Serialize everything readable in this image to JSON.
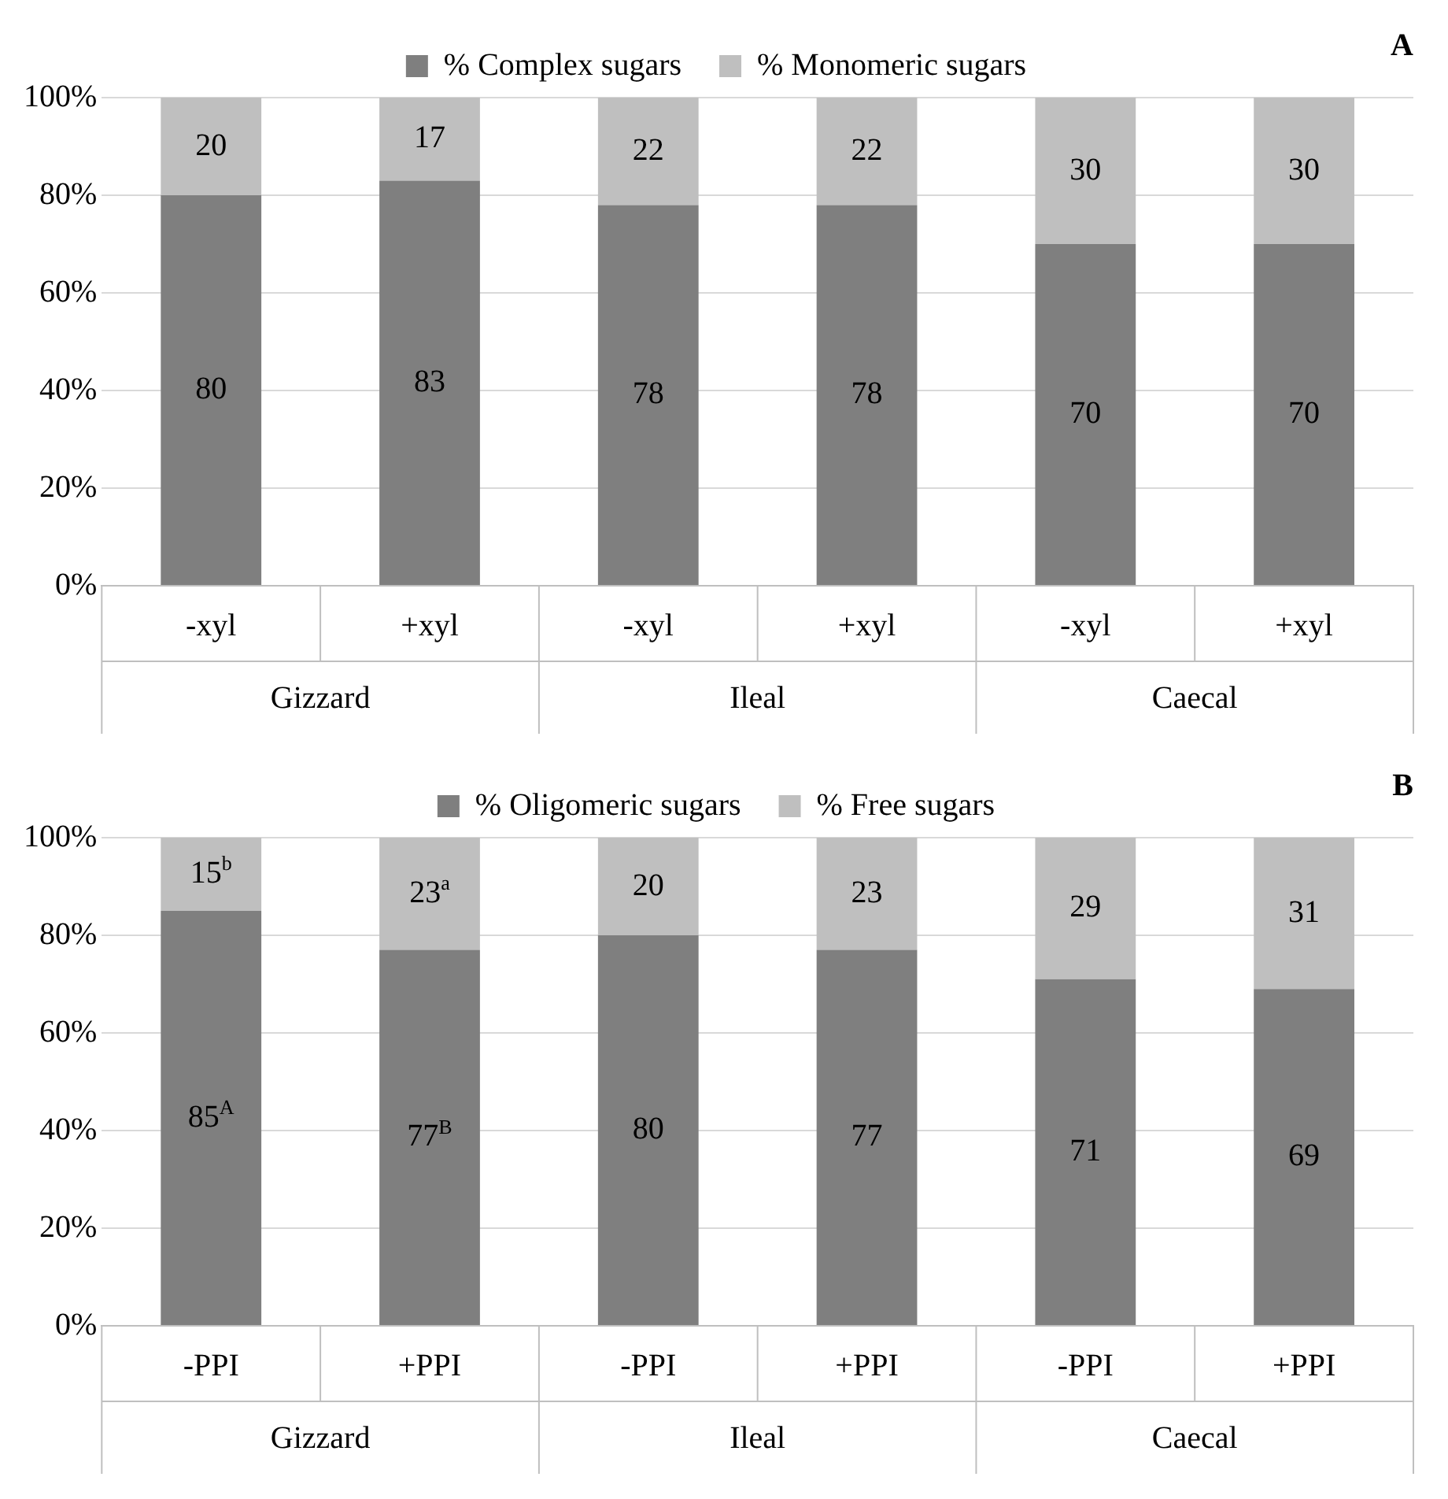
{
  "chart_data": [
    {
      "type": "bar",
      "stacked": true,
      "categories": [
        "-xyl",
        "+xyl",
        "-xyl",
        "+xyl",
        "-xyl",
        "+xyl"
      ],
      "series": [
        {
          "name": "% Complex sugars",
          "color": "#7f7f7f",
          "values": [
            80,
            83,
            78,
            78,
            70,
            70
          ]
        },
        {
          "name": "% Monomeric sugars",
          "color": "#bfbfbf",
          "values": [
            20,
            17,
            22,
            22,
            30,
            30
          ]
        }
      ],
      "ylim": [
        0,
        100
      ],
      "yticks": [
        {
          "value": 0,
          "label": "0%"
        },
        {
          "value": 20,
          "label": "20%"
        },
        {
          "value": 40,
          "label": "40%"
        },
        {
          "value": 60,
          "label": "60%"
        },
        {
          "value": 80,
          "label": "80%"
        },
        {
          "value": 100,
          "label": "100%"
        }
      ],
      "grid": "y",
      "legend": "top",
      "data_labels": true,
      "annotations": [
        "A",
        "Gizzard",
        "Ileal",
        "Caecal"
      ]
    },
    {
      "type": "bar",
      "stacked": true,
      "categories": [
        "-PPI",
        "+PPI",
        "-PPI",
        "+PPI",
        "-PPI",
        "+PPI"
      ],
      "series": [
        {
          "name": "% Oligomeric sugars",
          "color": "#7f7f7f",
          "values": [
            85,
            77,
            80,
            77,
            71,
            69
          ],
          "value_labels": [
            "85$^{A}$",
            "77$^{B}$",
            "80",
            "77",
            "71",
            "69"
          ]
        },
        {
          "name": "% Free sugars",
          "color": "#bfbfbf",
          "values": [
            15,
            23,
            20,
            23,
            29,
            31
          ],
          "value_labels": [
            "15$^{b}$",
            "23$^{a}$",
            "20",
            "23",
            "29",
            "31"
          ]
        }
      ],
      "ylim": [
        0,
        100
      ],
      "yticks": [
        {
          "value": 0,
          "label": "0%"
        },
        {
          "value": 20,
          "label": "20%"
        },
        {
          "value": 40,
          "label": "40%"
        },
        {
          "value": 60,
          "label": "60%"
        },
        {
          "value": 80,
          "label": "80%"
        },
        {
          "value": 100,
          "label": "100%"
        }
      ],
      "grid": "y",
      "legend": "top",
      "annotations": [
        "B",
        "Gizzard",
        "Ileal",
        "Caecal"
      ]
    }
  ]
}
